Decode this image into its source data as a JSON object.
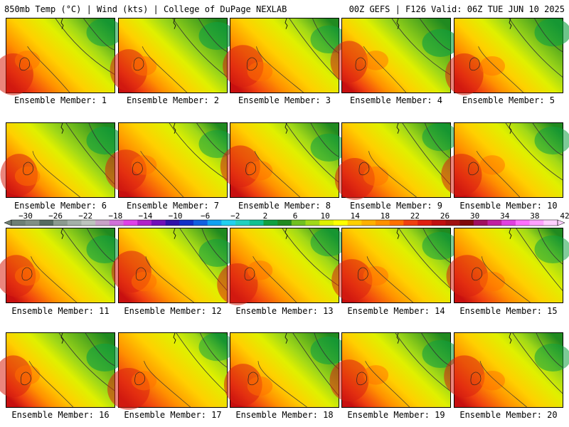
{
  "header": {
    "left": "850mb Temp (°C) | Wind (kts) | College of DuPage NEXLAB",
    "right": "00Z GEFS | F126 Valid: 06Z TUE JUN 10 2025"
  },
  "members": [
    {
      "label": "Ensemble Member: 1",
      "warmth": 0.7
    },
    {
      "label": "Ensemble Member: 2",
      "warmth": 0.55
    },
    {
      "label": "Ensemble Member: 3",
      "warmth": 0.75
    },
    {
      "label": "Ensemble Member: 4",
      "warmth": 0.55
    },
    {
      "label": "Ensemble Member: 5",
      "warmth": 0.6
    },
    {
      "label": "Ensemble Member: 6",
      "warmth": 0.55
    },
    {
      "label": "Ensemble Member: 7",
      "warmth": 0.8
    },
    {
      "label": "Ensemble Member: 8",
      "warmth": 0.7
    },
    {
      "label": "Ensemble Member: 9",
      "warmth": 0.7
    },
    {
      "label": "Ensemble Member: 10",
      "warmth": 0.75
    },
    {
      "label": "Ensemble Member: 11",
      "warmth": 0.65
    },
    {
      "label": "Ensemble Member: 12",
      "warmth": 0.7
    },
    {
      "label": "Ensemble Member: 13",
      "warmth": 0.75
    },
    {
      "label": "Ensemble Member: 14",
      "warmth": 0.75
    },
    {
      "label": "Ensemble Member: 15",
      "warmth": 0.8
    },
    {
      "label": "Ensemble Member: 16",
      "warmth": 0.55
    },
    {
      "label": "Ensemble Member: 17",
      "warmth": 0.85
    },
    {
      "label": "Ensemble Member: 18",
      "warmth": 0.6
    },
    {
      "label": "Ensemble Member: 19",
      "warmth": 0.65
    },
    {
      "label": "Ensemble Member: 20",
      "warmth": 0.75
    }
  ],
  "colorbar": {
    "labels": [
      "−30",
      "−26",
      "−22",
      "−18",
      "−14",
      "−10",
      "−6",
      "−2",
      "2",
      "6",
      "10",
      "14",
      "18",
      "22",
      "26",
      "30",
      "34",
      "38",
      "42"
    ],
    "colors": [
      "#6e7f74",
      "#7f8f84",
      "#556b60",
      "#8a9a8f",
      "#a3b0a8",
      "#bcc4be",
      "#c8a2c8",
      "#d070d8",
      "#e040e8",
      "#b020c8",
      "#7010b8",
      "#3010a8",
      "#1030c8",
      "#1060e0",
      "#10a0f0",
      "#20d0f0",
      "#20d0c0",
      "#10c090",
      "#10a040",
      "#208a20",
      "#70c020",
      "#a0d818",
      "#e0f000",
      "#ffff00",
      "#ffd000",
      "#ffb000",
      "#ff9000",
      "#ff7000",
      "#f04010",
      "#e02010",
      "#c01010",
      "#a01010",
      "#800a0a",
      "#a01060",
      "#c020a0",
      "#e040e0",
      "#ff70ff",
      "#ffa0ff",
      "#ffd0ff"
    ]
  }
}
